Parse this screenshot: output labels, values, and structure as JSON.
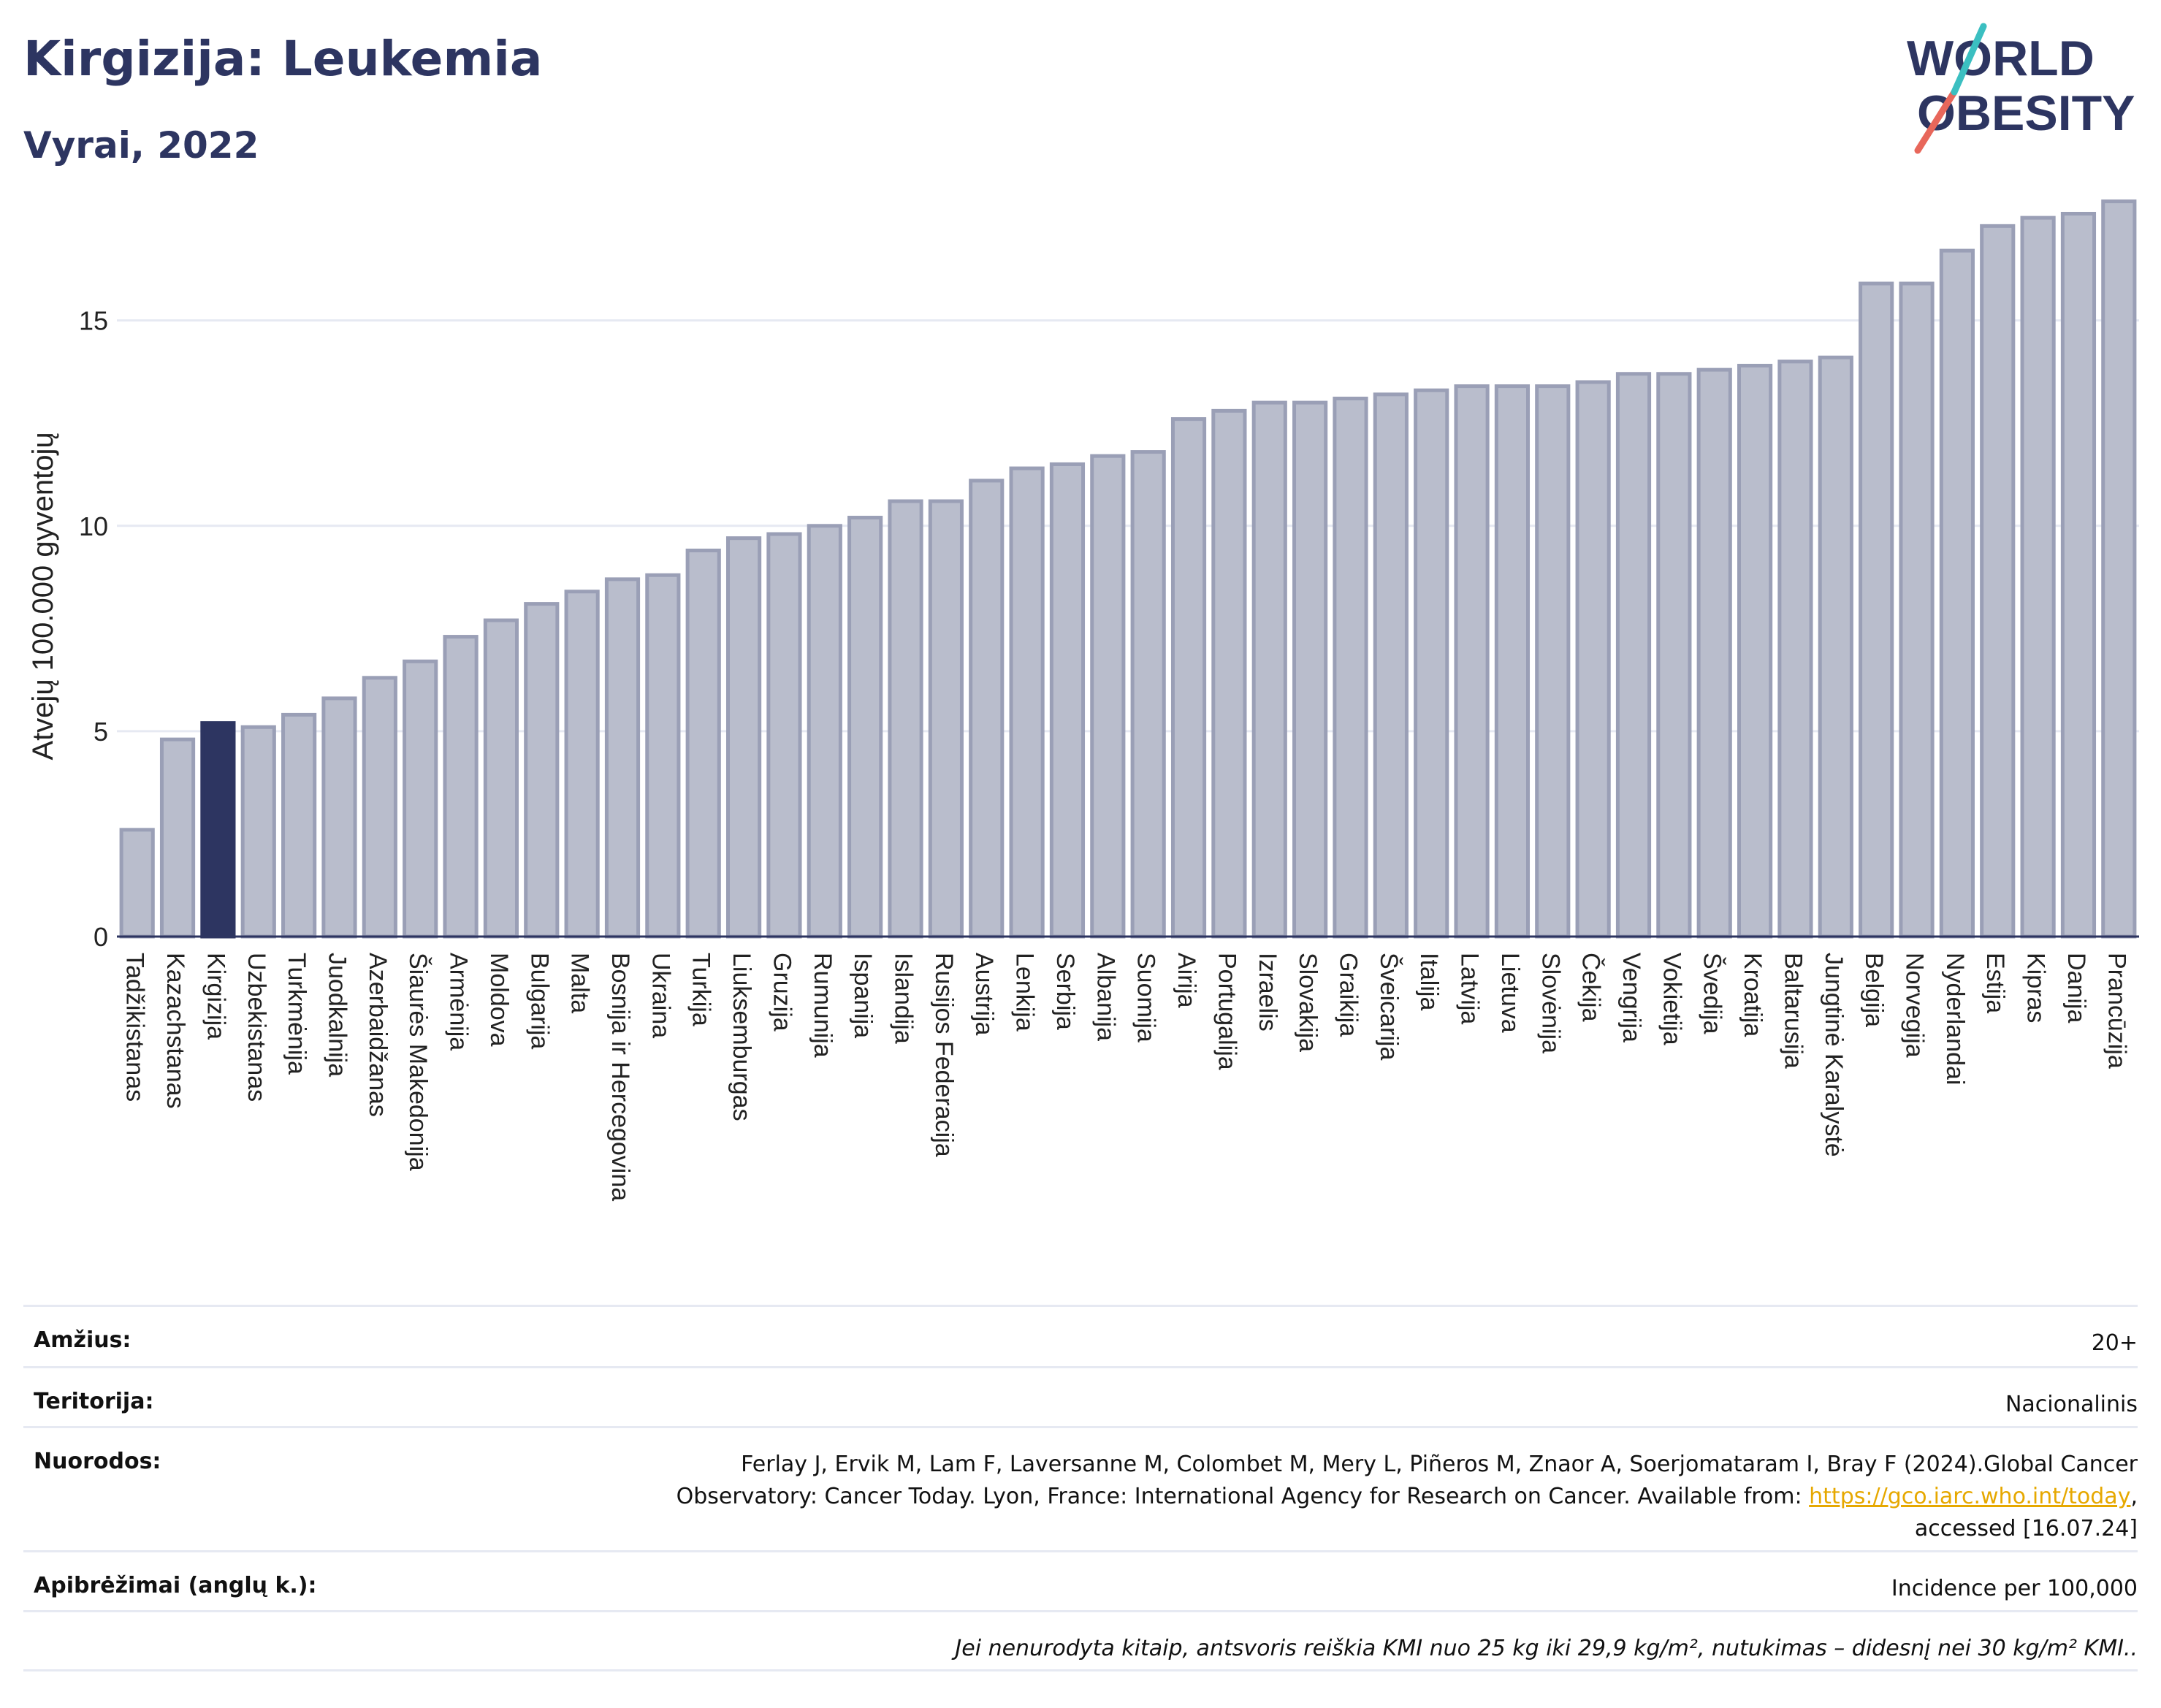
{
  "title": "Kirgizija: Leukemia",
  "subtitle": "Vyrai, 2022",
  "logo": {
    "line1": "WORLD",
    "line2": "OBESITY",
    "accent_colors": [
      "#e8675b",
      "#3bbfc1"
    ]
  },
  "colors": {
    "bar": "#b9bdcc",
    "bar_border": "#9a9fb6",
    "highlight": "#2d3561",
    "grid": "#e6e9f2"
  },
  "chart_data": {
    "type": "bar",
    "ylabel": "Atvejų 100.000 gyventojų",
    "ylim": [
      0,
      18
    ],
    "yticks": [
      0,
      5,
      10,
      15
    ],
    "highlight": "Kirgizija",
    "categories": [
      "Tadžikistanas",
      "Kazachstanas",
      "Kirgizija",
      "Uzbekistanas",
      "Turkmėnija",
      "Juodkalnija",
      "Azerbaidžanas",
      "Šiaurės Makedonija",
      "Armėnija",
      "Moldova",
      "Bulgarija",
      "Malta",
      "Bosnija ir Hercegovina",
      "Ukraina",
      "Turkija",
      "Liuksemburgas",
      "Gruzija",
      "Rumunija",
      "Ispanija",
      "Islandija",
      "Rusijos Federacija",
      "Austrija",
      "Lenkija",
      "Serbija",
      "Albanija",
      "Suomija",
      "Airija",
      "Portugalija",
      "Izraelis",
      "Slovakija",
      "Graikija",
      "Šveicarija",
      "Italija",
      "Latvija",
      "Lietuva",
      "Slovėnija",
      "Čekija",
      "Vengrija",
      "Vokietija",
      "Švedija",
      "Kroatija",
      "Baltarusija",
      "Jungtinė Karalystė",
      "Belgija",
      "Norvegija",
      "Nyderlandai",
      "Estija",
      "Kipras",
      "Danija",
      "Prancūzija"
    ],
    "values": [
      2.6,
      4.8,
      5.2,
      5.1,
      5.4,
      5.8,
      6.3,
      6.7,
      7.3,
      7.7,
      8.1,
      8.4,
      8.7,
      8.8,
      9.4,
      9.7,
      9.8,
      10.0,
      10.2,
      10.6,
      10.6,
      11.1,
      11.4,
      11.5,
      11.7,
      11.8,
      12.6,
      12.8,
      13.0,
      13.0,
      13.1,
      13.2,
      13.3,
      13.4,
      13.4,
      13.4,
      13.5,
      13.7,
      13.7,
      13.8,
      13.9,
      14.0,
      14.1,
      15.9,
      15.9,
      16.7,
      17.3,
      17.5,
      17.6,
      17.9
    ]
  },
  "info": {
    "age_label": "Amžius:",
    "age_value": "20+",
    "territory_label": "Teritorija:",
    "territory_value": "Nacionalinis",
    "refs_label": "Nuorodos:",
    "refs_text_1": "Ferlay J, Ervik M, Lam F, Laversanne M, Colombet M, Mery L, Piñeros M, Znaor A, Soerjomataram I, Bray F (2024).Global Cancer",
    "refs_text_2": "Observatory: Cancer Today. Lyon, France: International Agency for Research on Cancer. Available from: ",
    "refs_link": "https://gco.iarc.who.int/today",
    "refs_text_3": ",",
    "refs_text_4": "accessed [16.07.24]",
    "def_label": "Apibrėžimai (anglų k.):",
    "def_value": "Incidence per 100,000",
    "note": "Jei nenurodyta kitaip, antsvoris reiškia KMI nuo 25 kg iki 29,9 kg/m², nutukimas – didesnį nei 30 kg/m² KMI.."
  }
}
